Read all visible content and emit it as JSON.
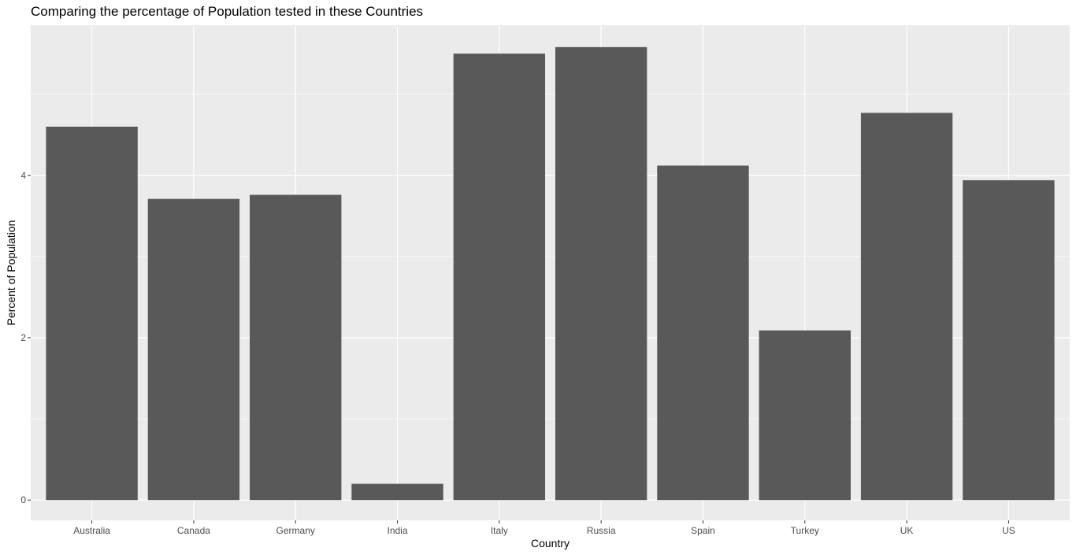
{
  "colors": {
    "panel_background": "#ebebeb",
    "gridline": "#ffffff",
    "bar_fill": "#595959",
    "tick_mark": "#333333",
    "tick_label": "#4d4d4d"
  },
  "chart_data": {
    "type": "bar",
    "title": "Comparing the percentage of Population tested in these Countries",
    "xlabel": "Country",
    "ylabel": "Percent of Population",
    "categories": [
      "Australia",
      "Canada",
      "Germany",
      "India",
      "Italy",
      "Russia",
      "Spain",
      "Turkey",
      "UK",
      "US"
    ],
    "values": [
      4.6,
      3.71,
      3.76,
      0.2,
      5.5,
      5.58,
      4.12,
      2.09,
      4.77,
      3.94
    ],
    "ylim": [
      -0.25,
      5.85
    ],
    "yticks": [
      0,
      2,
      4
    ],
    "grid": true,
    "legend": "none"
  }
}
